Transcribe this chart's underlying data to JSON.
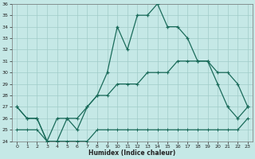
{
  "xlabel": "Humidex (Indice chaleur)",
  "x": [
    0,
    1,
    2,
    3,
    4,
    5,
    6,
    7,
    8,
    9,
    10,
    11,
    12,
    13,
    14,
    15,
    16,
    17,
    18,
    19,
    20,
    21,
    22,
    23
  ],
  "main_line": [
    27,
    26,
    26,
    24,
    24,
    26,
    25,
    27,
    28,
    30,
    34,
    32,
    35,
    35,
    36,
    34,
    34,
    33,
    31,
    31,
    29,
    27,
    26,
    27
  ],
  "upper_line": [
    27,
    26,
    26,
    24,
    26,
    26,
    26,
    27,
    28,
    28,
    29,
    29,
    29,
    30,
    30,
    30,
    31,
    31,
    31,
    31,
    30,
    30,
    29,
    27
  ],
  "lower_line": [
    25,
    25,
    25,
    24,
    24,
    24,
    24,
    24,
    25,
    25,
    25,
    25,
    25,
    25,
    25,
    25,
    25,
    25,
    25,
    25,
    25,
    25,
    25,
    26
  ],
  "ylim": [
    24,
    36
  ],
  "xlim": [
    0,
    23
  ],
  "yticks": [
    24,
    25,
    26,
    27,
    28,
    29,
    30,
    31,
    32,
    33,
    34,
    35,
    36
  ],
  "xticks": [
    0,
    1,
    2,
    3,
    4,
    5,
    6,
    7,
    8,
    9,
    10,
    11,
    12,
    13,
    14,
    15,
    16,
    17,
    18,
    19,
    20,
    21,
    22,
    23
  ],
  "line_color": "#1a6b5a",
  "bg_color": "#c5e8e6",
  "grid_color": "#a0ccc8",
  "spine_color": "#777777"
}
